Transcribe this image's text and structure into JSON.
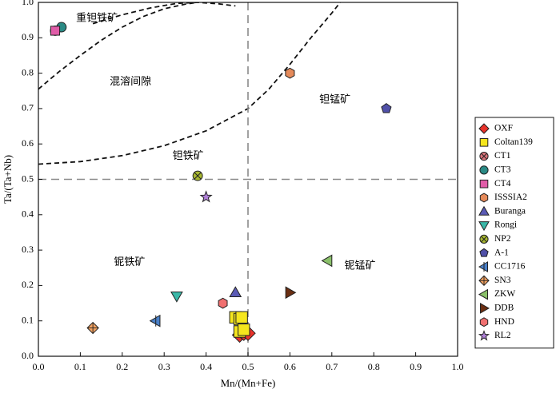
{
  "chart_data": {
    "type": "scatter",
    "xlabel": "Mn/(Mn+Fe)",
    "ylabel": "Ta/(Ta+Nb)",
    "xlim": [
      0,
      1
    ],
    "ylim": [
      0,
      1
    ],
    "xticks": [
      "0.0",
      "0.1",
      "0.2",
      "0.3",
      "0.4",
      "0.5",
      "0.6",
      "0.7",
      "0.8",
      "0.9",
      "1.0"
    ],
    "yticks": [
      "0.0",
      "0.1",
      "0.2",
      "0.3",
      "0.4",
      "0.5",
      "0.6",
      "0.7",
      "0.8",
      "0.9",
      "1.0"
    ],
    "divider_x": 0.5,
    "divider_y": 0.5,
    "legend_placement": "right",
    "region_labels": [
      {
        "text": "重钽铁矿",
        "x": 0.09,
        "y": 0.955
      },
      {
        "text": "混溶间隙",
        "x": 0.17,
        "y": 0.775
      },
      {
        "text": "钽锰矿",
        "x": 0.67,
        "y": 0.725
      },
      {
        "text": "钽铁矿",
        "x": 0.32,
        "y": 0.565
      },
      {
        "text": "铌铁矿",
        "x": 0.18,
        "y": 0.265
      },
      {
        "text": "铌锰矿",
        "x": 0.73,
        "y": 0.255
      }
    ],
    "boundary_curves": [
      [
        [
          0.0,
          0.755
        ],
        [
          0.05,
          0.805
        ],
        [
          0.1,
          0.85
        ],
        [
          0.15,
          0.893
        ],
        [
          0.2,
          0.93
        ],
        [
          0.25,
          0.96
        ],
        [
          0.3,
          0.982
        ],
        [
          0.35,
          0.995
        ],
        [
          0.38,
          1.0
        ]
      ],
      [
        [
          0.0,
          0.543
        ],
        [
          0.1,
          0.55
        ],
        [
          0.2,
          0.567
        ],
        [
          0.3,
          0.595
        ],
        [
          0.4,
          0.637
        ],
        [
          0.5,
          0.7
        ],
        [
          0.55,
          0.755
        ],
        [
          0.6,
          0.825
        ],
        [
          0.65,
          0.9
        ],
        [
          0.7,
          0.97
        ],
        [
          0.72,
          1.0
        ]
      ],
      [
        [
          0.13,
          0.94
        ],
        [
          0.2,
          0.965
        ],
        [
          0.27,
          0.985
        ],
        [
          0.33,
          0.997
        ],
        [
          0.38,
          1.0
        ],
        [
          0.43,
          0.996
        ],
        [
          0.47,
          0.99
        ]
      ]
    ],
    "series": [
      {
        "name": "OXF",
        "marker": "diamond",
        "color": "#e8322a",
        "points": [
          [
            0.48,
            0.06
          ],
          [
            0.485,
            0.07
          ],
          [
            0.49,
            0.065
          ],
          [
            0.495,
            0.07
          ],
          [
            0.5,
            0.065
          ]
        ]
      },
      {
        "name": "Coltan139",
        "marker": "square",
        "color": "#f5e61d",
        "points": [
          [
            0.47,
            0.11
          ],
          [
            0.48,
            0.105
          ],
          [
            0.485,
            0.11
          ],
          [
            0.48,
            0.07
          ],
          [
            0.49,
            0.075
          ]
        ]
      },
      {
        "name": "CT1",
        "marker": "circlecross",
        "color": "#d9737a",
        "points": [
          [
            0.04,
            0.92
          ]
        ]
      },
      {
        "name": "CT3",
        "marker": "circle",
        "color": "#2a8a85",
        "points": [
          [
            0.055,
            0.93
          ]
        ]
      },
      {
        "name": "CT4",
        "marker": "square",
        "color": "#e05ca8",
        "points": [
          [
            0.04,
            0.92
          ]
        ]
      },
      {
        "name": "ISSSIA2",
        "marker": "hexagon",
        "color": "#e58a5a",
        "points": [
          [
            0.6,
            0.8
          ]
        ]
      },
      {
        "name": "Buranga",
        "marker": "triangle-up",
        "color": "#5a5ab5",
        "points": [
          [
            0.47,
            0.18
          ]
        ]
      },
      {
        "name": "Rongi",
        "marker": "triangle-down",
        "color": "#3ab8a8",
        "points": [
          [
            0.33,
            0.17
          ]
        ]
      },
      {
        "name": "NP2",
        "marker": "circlecross",
        "color": "#a8b830",
        "points": [
          [
            0.38,
            0.51
          ]
        ]
      },
      {
        "name": "A-1",
        "marker": "pentagon",
        "color": "#5050a8",
        "points": [
          [
            0.83,
            0.7
          ]
        ]
      },
      {
        "name": "CC1716",
        "marker": "tri-left-bar",
        "color": "#4a80c8",
        "points": [
          [
            0.28,
            0.1
          ]
        ]
      },
      {
        "name": "SN3",
        "marker": "diamondplus",
        "color": "#f0a060",
        "points": [
          [
            0.13,
            0.08
          ]
        ]
      },
      {
        "name": "ZKW",
        "marker": "triangle-left",
        "color": "#8ac06a",
        "points": [
          [
            0.69,
            0.27
          ]
        ]
      },
      {
        "name": "DDB",
        "marker": "triangle-right",
        "color": "#6a2e12",
        "points": [
          [
            0.6,
            0.18
          ]
        ]
      },
      {
        "name": "HND",
        "marker": "hexagon",
        "color": "#f07070",
        "points": [
          [
            0.44,
            0.15
          ]
        ]
      },
      {
        "name": "RL2",
        "marker": "star",
        "color": "#b080d8",
        "points": [
          [
            0.4,
            0.45
          ]
        ]
      }
    ]
  }
}
